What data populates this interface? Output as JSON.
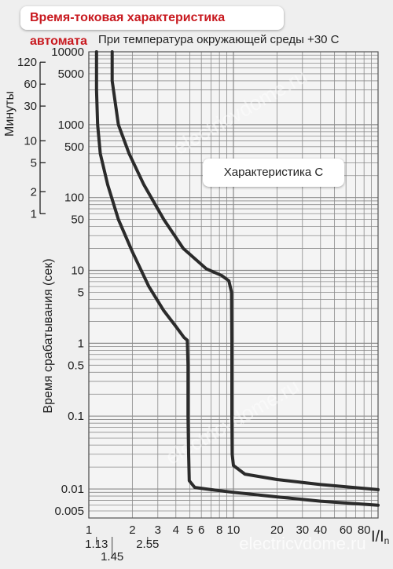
{
  "title": "Время-токовая характеристика автомата",
  "subtitle": "При температура окружающей среды +30 С",
  "legend_label": "Характеристика С",
  "watermark": "electricvdome.ru",
  "colors": {
    "title_red": "#c8191f",
    "curve": "#2b2b2b",
    "grid": "#8a8a8a",
    "background": "#efefef"
  },
  "chart_data": {
    "type": "line",
    "scale": "log-log",
    "xlabel": "I/In",
    "ylabel": "Время срабатывания (сек)",
    "secondary_ylabel": "Минуты",
    "xlim": [
      1,
      100
    ],
    "ylim": [
      0.004,
      10000
    ],
    "x_ticks": [
      {
        "value": 1,
        "label": "1"
      },
      {
        "value": 2,
        "label": "2"
      },
      {
        "value": 3,
        "label": "3"
      },
      {
        "value": 4,
        "label": "4"
      },
      {
        "value": 5,
        "label": "5"
      },
      {
        "value": 6,
        "label": "6"
      },
      {
        "value": 8,
        "label": "8"
      },
      {
        "value": 10,
        "label": "10"
      },
      {
        "value": 20,
        "label": "20"
      },
      {
        "value": 30,
        "label": "30"
      },
      {
        "value": 40,
        "label": "40"
      },
      {
        "value": 60,
        "label": "60"
      },
      {
        "value": 80,
        "label": "80"
      }
    ],
    "x_extra_ticks": [
      {
        "value": 1.13,
        "label": "1.13"
      },
      {
        "value": 1.45,
        "label": "1.45"
      },
      {
        "value": 2.55,
        "label": "2.55"
      }
    ],
    "y_ticks": [
      {
        "value": 10000,
        "label": "10000"
      },
      {
        "value": 5000,
        "label": "5000"
      },
      {
        "value": 1000,
        "label": "1000"
      },
      {
        "value": 500,
        "label": "500"
      },
      {
        "value": 100,
        "label": "100"
      },
      {
        "value": 50,
        "label": "50"
      },
      {
        "value": 10,
        "label": "10"
      },
      {
        "value": 5,
        "label": "5"
      },
      {
        "value": 1,
        "label": "1"
      },
      {
        "value": 0.5,
        "label": "0.5"
      },
      {
        "value": 0.1,
        "label": "0.1"
      },
      {
        "value": 0.01,
        "label": "0.01"
      },
      {
        "value": 0.005,
        "label": "0.005"
      }
    ],
    "minute_ticks": [
      {
        "minutes": 120,
        "label": "120"
      },
      {
        "minutes": 60,
        "label": "60"
      },
      {
        "minutes": 30,
        "label": "30"
      },
      {
        "minutes": 10,
        "label": "10"
      },
      {
        "minutes": 5,
        "label": "5"
      },
      {
        "minutes": 2,
        "label": "2"
      },
      {
        "minutes": 1,
        "label": "1"
      }
    ],
    "series": [
      {
        "points": [
          [
            1.13,
            10000
          ],
          [
            1.13,
            3000
          ],
          [
            1.15,
            1000
          ],
          [
            1.2,
            400
          ],
          [
            1.35,
            150
          ],
          [
            1.6,
            50
          ],
          [
            2.0,
            18
          ],
          [
            2.6,
            6
          ],
          [
            3.3,
            2.8
          ],
          [
            4.0,
            1.7
          ],
          [
            4.55,
            1.2
          ],
          [
            4.8,
            1.1
          ],
          [
            4.85,
            0.5
          ],
          [
            4.85,
            0.1
          ],
          [
            4.9,
            0.03
          ],
          [
            4.95,
            0.013
          ],
          [
            5.4,
            0.0105
          ],
          [
            7,
            0.0098
          ],
          [
            10,
            0.009
          ],
          [
            20,
            0.0078
          ],
          [
            40,
            0.0068
          ],
          [
            100,
            0.006
          ]
        ]
      },
      {
        "points": [
          [
            1.45,
            10000
          ],
          [
            1.45,
            4000
          ],
          [
            1.6,
            1000
          ],
          [
            1.9,
            400
          ],
          [
            2.4,
            150
          ],
          [
            3.3,
            50
          ],
          [
            4.5,
            20
          ],
          [
            6.5,
            10.5
          ],
          [
            8.3,
            8.5
          ],
          [
            9.3,
            7.2
          ],
          [
            9.7,
            5
          ],
          [
            9.75,
            1
          ],
          [
            9.75,
            0.1
          ],
          [
            9.8,
            0.03
          ],
          [
            10.0,
            0.021
          ],
          [
            12,
            0.016
          ],
          [
            20,
            0.0135
          ],
          [
            40,
            0.0115
          ],
          [
            100,
            0.0098
          ]
        ]
      }
    ]
  }
}
